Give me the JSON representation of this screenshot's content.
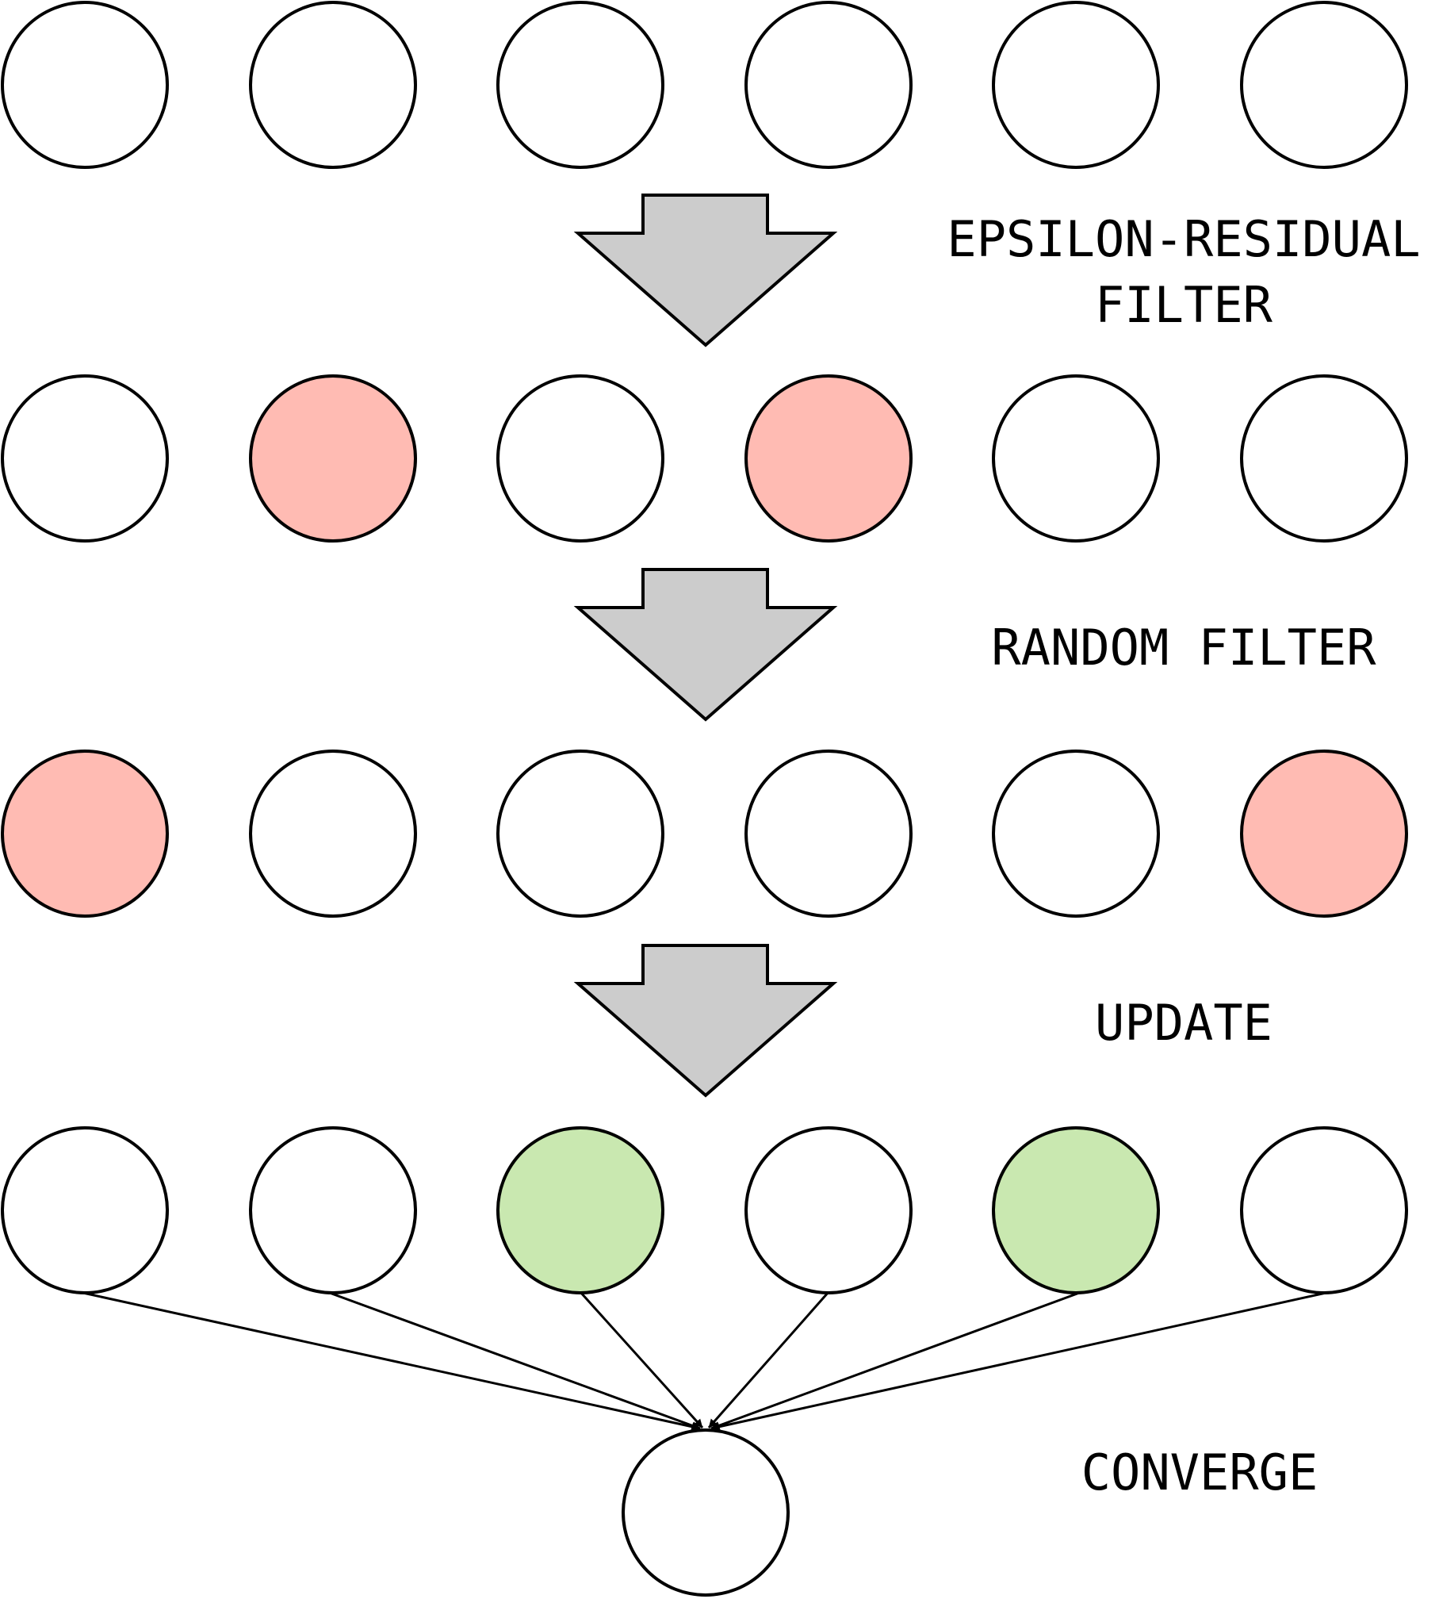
{
  "diagram": {
    "colors": {
      "default": "#ffffff",
      "filtered": "#ffbbb3",
      "updated": "#c9e8b0",
      "arrow_fill": "#cccccc",
      "stroke": "#000000"
    },
    "rows": [
      {
        "nodes": [
          "default",
          "default",
          "default",
          "default",
          "default",
          "default"
        ]
      },
      {
        "nodes": [
          "default",
          "filtered",
          "default",
          "filtered",
          "default",
          "default"
        ]
      },
      {
        "nodes": [
          "filtered",
          "default",
          "default",
          "default",
          "default",
          "filtered"
        ]
      },
      {
        "nodes": [
          "default",
          "default",
          "updated",
          "default",
          "updated",
          "default"
        ]
      }
    ],
    "final_node": "default",
    "labels": {
      "step1_line1": "EPSILON-RESIDUAL",
      "step1_line2": "FILTER",
      "step2": "RANDOM FILTER",
      "step3": "UPDATE",
      "step4": "CONVERGE"
    }
  }
}
